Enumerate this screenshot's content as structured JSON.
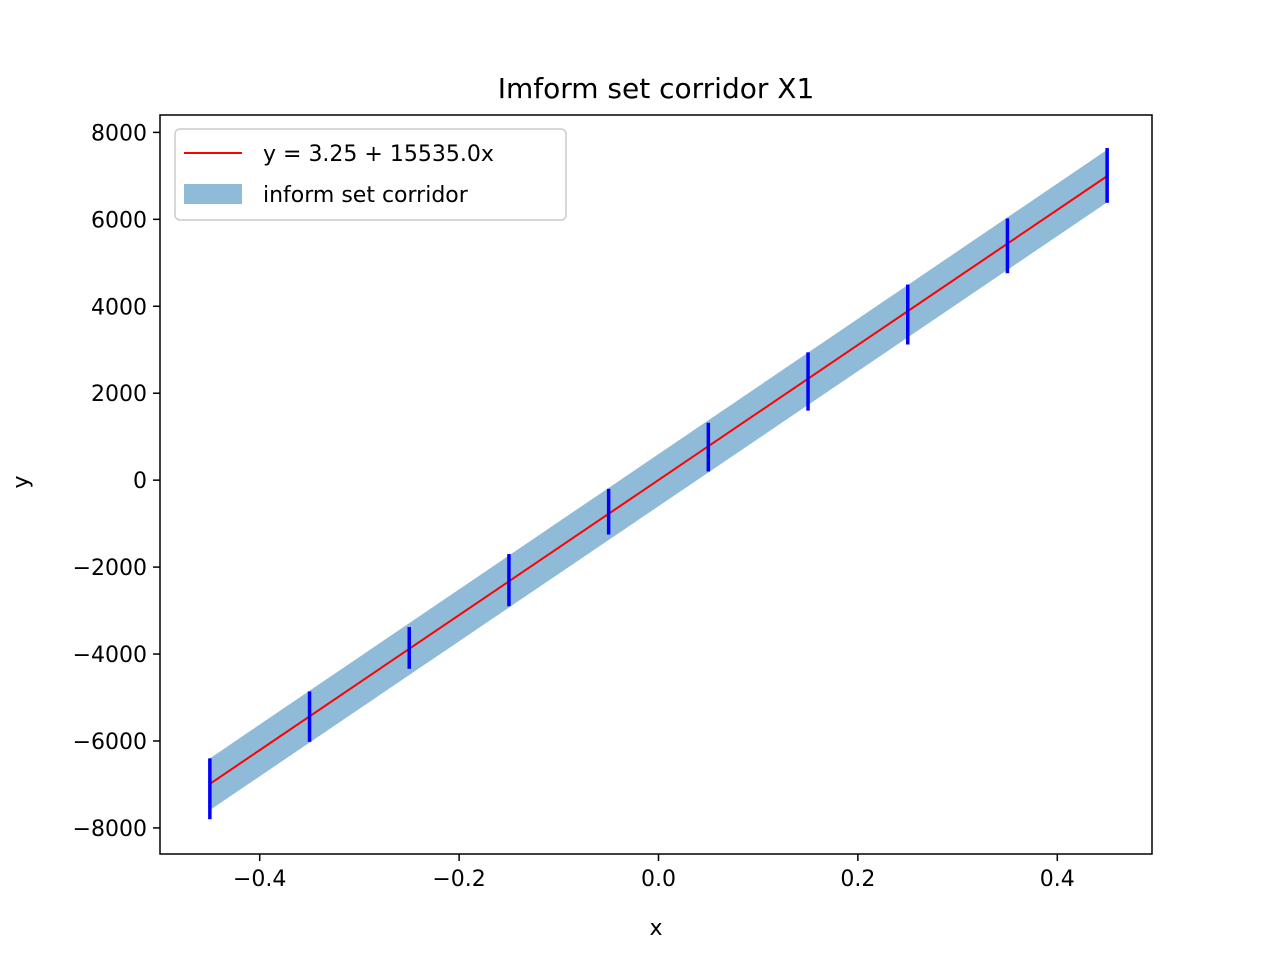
{
  "chart_data": {
    "type": "line",
    "title": "Imform set corridor X1",
    "xlabel": "x",
    "ylabel": "y",
    "xlim": [
      -0.5,
      0.495
    ],
    "ylim": [
      -8600,
      8400
    ],
    "x_ticks": [
      -0.4,
      -0.2,
      0.0,
      0.2,
      0.4
    ],
    "x_tick_labels": [
      "−0.4",
      "−0.2",
      "0.0",
      "0.2",
      "0.4"
    ],
    "y_ticks": [
      -8000,
      -6000,
      -4000,
      -2000,
      0,
      2000,
      4000,
      6000,
      8000
    ],
    "y_tick_labels": [
      "−8000",
      "−6000",
      "−4000",
      "−2000",
      "0",
      "2000",
      "4000",
      "6000",
      "8000"
    ],
    "grid": false,
    "legend_position": "top-left",
    "series": [
      {
        "name": "y = 3.25 + 15535.0x",
        "kind": "line",
        "color": "#ff0000",
        "intercept": 3.25,
        "slope": 15535.0,
        "x": [
          -0.45,
          0.45
        ]
      },
      {
        "name": "inform set corridor",
        "kind": "band",
        "color": "#1f77b4",
        "opacity": 0.5,
        "x": [
          -0.45,
          0.45
        ],
        "y_lower": [
          -7590,
          6390
        ],
        "y_upper": [
          -6400,
          7600
        ]
      }
    ],
    "intervals": {
      "color": "#0000ff",
      "x": [
        -0.45,
        -0.35,
        -0.25,
        -0.15,
        -0.05,
        0.05,
        0.15,
        0.25,
        0.35,
        0.45
      ],
      "y_lower": [
        -7800,
        -6020,
        -4340,
        -2900,
        -1250,
        200,
        1600,
        3120,
        4760,
        6380
      ],
      "y_upper": [
        -6400,
        -4860,
        -3380,
        -1700,
        -200,
        1320,
        2940,
        4500,
        6020,
        7640
      ]
    }
  }
}
